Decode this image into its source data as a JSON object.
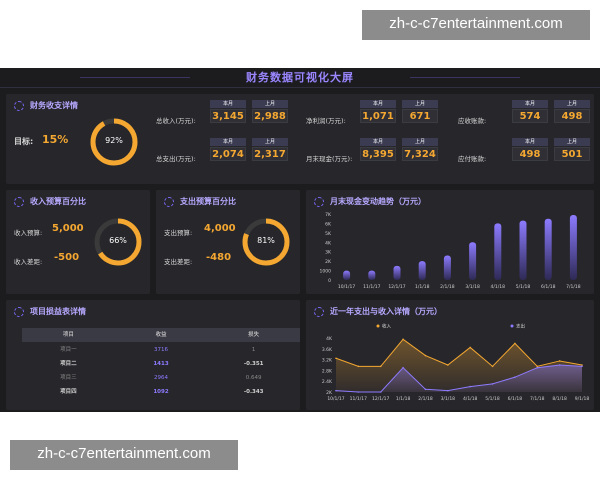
{
  "watermark": {
    "text": "zh-c-c7entertainment.com"
  },
  "dashboard": {
    "title": "财务数据可视化大屏"
  },
  "income_detail": {
    "title": "财务收支详情",
    "target_label": "目标:",
    "target_value": "15%",
    "gauge_percent": 92,
    "gauge_text": "92%",
    "tag_this": "本月",
    "tag_last": "上月",
    "kpis": [
      {
        "label": "总收入(万元):",
        "this": "3,145",
        "last": "2,988"
      },
      {
        "label": "总支出(万元):",
        "this": "2,074",
        "last": "2,317"
      },
      {
        "label": "净利润(万元):",
        "this": "1,071",
        "last": "671"
      },
      {
        "label": "月末现金(万元):",
        "this": "8,395",
        "last": "7,324"
      },
      {
        "label": "应收账款:",
        "this": "574",
        "last": "498"
      },
      {
        "label": "应付账款:",
        "this": "498",
        "last": "501"
      }
    ]
  },
  "income_budget": {
    "title": "收入预算百分比",
    "budget_label": "收入预算:",
    "budget_value": "5,000",
    "gap_label": "收入差距:",
    "gap_value": "-500",
    "gauge_percent": 66,
    "gauge_text": "66%"
  },
  "expense_budget": {
    "title": "支出预算百分比",
    "budget_label": "支出预算:",
    "budget_value": "4,000",
    "gap_label": "支出差距:",
    "gap_value": "-480",
    "gauge_percent": 81,
    "gauge_text": "81%"
  },
  "project_table": {
    "title": "项目损益表详情",
    "headers": [
      "项目",
      "收益",
      "损失"
    ],
    "rows": [
      {
        "name": "项目一",
        "income": "3716",
        "loss": "1"
      },
      {
        "name": "项目二",
        "income": "1413",
        "loss": "-0.351"
      },
      {
        "name": "项目三",
        "income": "2964",
        "loss": "0.649"
      },
      {
        "name": "项目四",
        "income": "1092",
        "loss": "-0.343"
      }
    ]
  },
  "colors": {
    "accent": "#8d7bff",
    "orange": "#f4a731",
    "bg": "#1c1c1f",
    "panel": "#26262b"
  },
  "chart_data": [
    {
      "type": "bar",
      "title": "月末现金变动趋势（万元）",
      "categories": [
        "10/1/17",
        "11/1/17",
        "12/1/17",
        "1/1/18",
        "2/1/18",
        "3/1/18",
        "4/1/18",
        "5/1/18",
        "6/1/18",
        "7/1/18"
      ],
      "values": [
        1000,
        1000,
        1500,
        2000,
        2600,
        4000,
        6000,
        6300,
        6500,
        6900
      ],
      "ylim": [
        0,
        7000
      ],
      "yticks": [
        "0",
        "1000",
        "2K",
        "3K",
        "4K",
        "5K",
        "6K",
        "7K"
      ],
      "xlabel": "",
      "ylabel": ""
    },
    {
      "type": "line",
      "title": "近一年支出与收入详情（万元）",
      "categories": [
        "10/1/17",
        "11/1/17",
        "12/1/17",
        "1/1/18",
        "2/1/18",
        "3/1/18",
        "4/1/18",
        "5/1/18",
        "6/1/18",
        "7/1/18",
        "8/1/18",
        "9/1/18"
      ],
      "series": [
        {
          "name": "收入",
          "color": "#f4a731",
          "values": [
            3250,
            2950,
            2950,
            3950,
            3350,
            3000,
            3650,
            2950,
            3800,
            2950,
            3150,
            3000
          ]
        },
        {
          "name": "支出",
          "color": "#8d7bff",
          "values": [
            2050,
            2000,
            2000,
            2900,
            2100,
            2050,
            2200,
            2300,
            2550,
            2900,
            3000,
            2950
          ]
        }
      ],
      "ylim": [
        2000,
        4000
      ],
      "yticks": [
        "2K",
        "2.4K",
        "2.8K",
        "3.2K",
        "3.6K",
        "4K"
      ],
      "xlabel": "",
      "ylabel": ""
    }
  ]
}
